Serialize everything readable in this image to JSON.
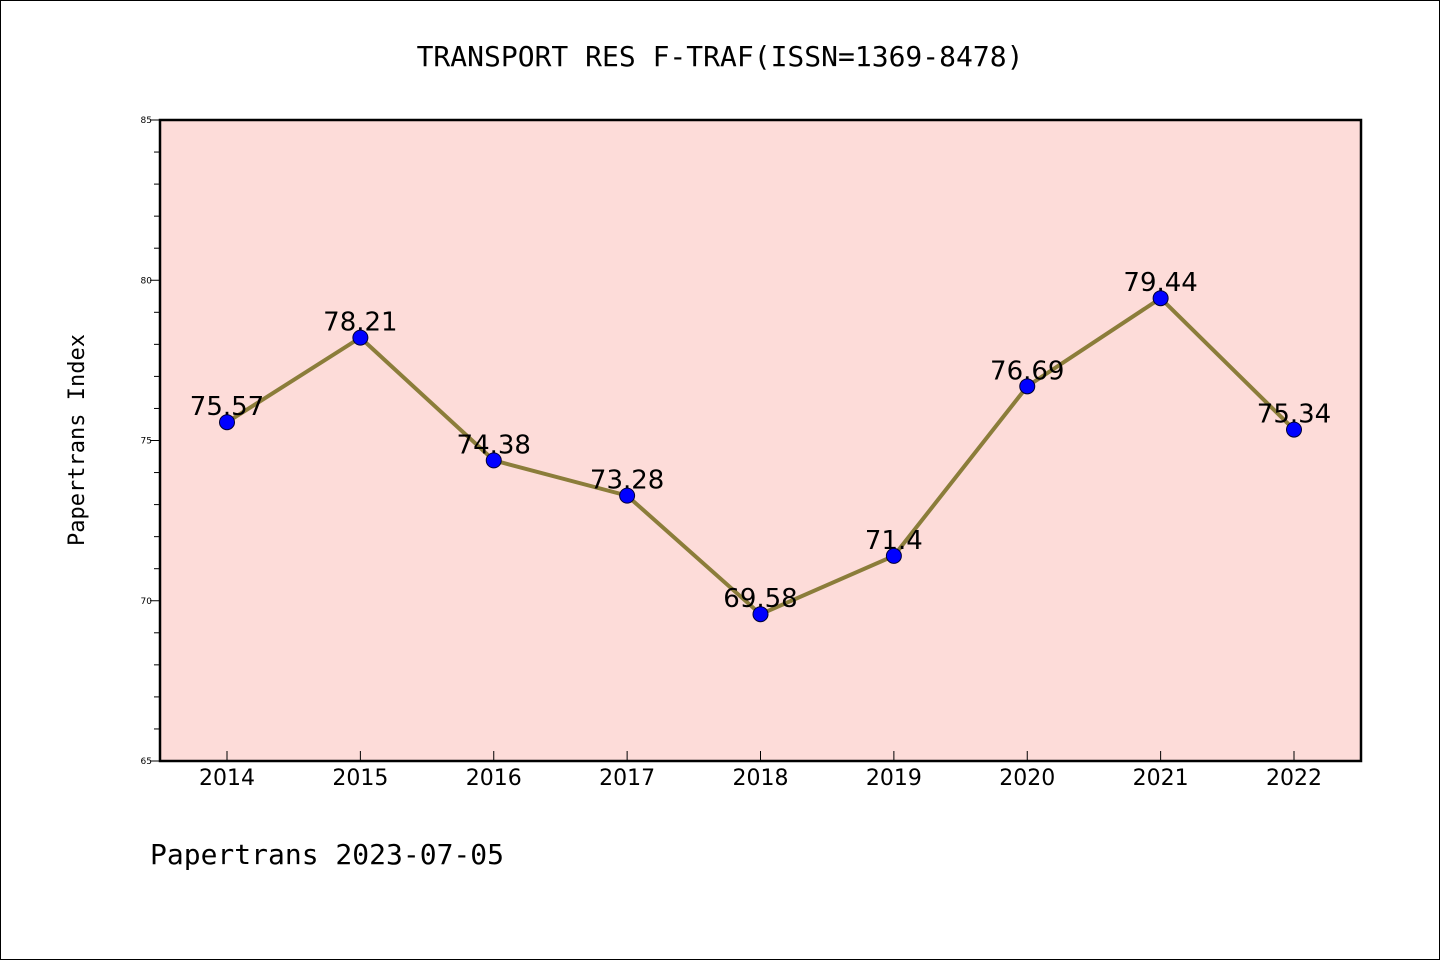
{
  "chart_data": {
    "type": "line",
    "title": "TRANSPORT RES F-TRAF(ISSN=1369-8478)",
    "xlabel": "",
    "ylabel": "Papertrans Index",
    "categories": [
      "2014",
      "2015",
      "2016",
      "2017",
      "2018",
      "2019",
      "2020",
      "2021",
      "2022"
    ],
    "series": [
      {
        "values": [
          75.57,
          78.21,
          74.38,
          73.28,
          69.58,
          71.4,
          76.69,
          79.44,
          75.34
        ],
        "data_labels": [
          "75.57",
          "78.21",
          "74.38",
          "73.28",
          "69.58",
          "71.4",
          "76.69",
          "79.44",
          "75.34"
        ],
        "line_color": "#8B7D3A",
        "marker_color": "#0000FF"
      }
    ],
    "ylim": [
      65,
      85
    ],
    "y_ticks": [
      65,
      70,
      75,
      80,
      85
    ],
    "y_tick_labels": [
      "65",
      "70",
      "75",
      "80",
      "85"
    ],
    "plot_background": "#FDDCD9",
    "grid": false,
    "legend": "none"
  },
  "footer": {
    "note": "Papertrans 2023-07-05"
  }
}
